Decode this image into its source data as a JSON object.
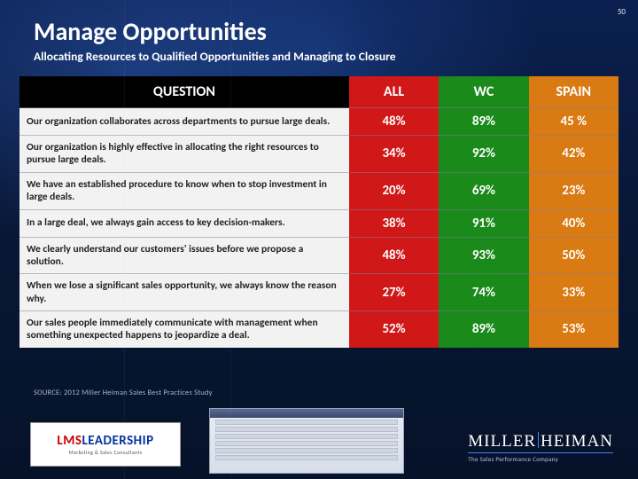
{
  "page_number": "50",
  "title": "Manage Opportunities",
  "subtitle": "Allocating Resources to Qualified Opportunities and Managing to Closure",
  "table": {
    "headers": {
      "q": "QUESTION",
      "all": "ALL",
      "wc": "WC",
      "sp": "SPAIN"
    },
    "header_colors": {
      "q": "#000000",
      "all": "#d01818",
      "wc": "#1a8a1a",
      "sp": "#d97a12"
    },
    "column_widths_pct": [
      55,
      15,
      15,
      15
    ],
    "body_font_size_pt": 11.5,
    "value_font_size_pt": 15,
    "rows": [
      {
        "q": "Our organization collaborates across departments to pursue large deals.",
        "all": "48%",
        "wc": "89%",
        "sp": "45 %"
      },
      {
        "q": "Our organization is highly effective in allocating the right resources to pursue large deals.",
        "all": "34%",
        "wc": "92%",
        "sp": "42%"
      },
      {
        "q": "We have an established procedure to know when to stop investment in large deals.",
        "all": "20%",
        "wc": "69%",
        "sp": "23%"
      },
      {
        "q": "In a large deal, we always gain access to key decision-makers.",
        "all": "38%",
        "wc": "91%",
        "sp": "40%"
      },
      {
        "q": "We clearly understand our customers' issues before we propose a solution.",
        "all": "48%",
        "wc": "93%",
        "sp": "50%"
      },
      {
        "q": "When we lose a significant sales opportunity, we always know the reason why.",
        "all": "27%",
        "wc": "74%",
        "sp": "33%"
      },
      {
        "q": "Our sales people immediately communicate with management when something unexpected happens to jeopardize a deal.",
        "all": "52%",
        "wc": "89%",
        "sp": "53%"
      }
    ]
  },
  "source": "SOURCE: 2012 Miller Heiman Sales Best Practices Study",
  "logo_left": {
    "text_red": "LMS",
    "text_blue": "LEADERSHIP",
    "tag": "Marketing & Sales Consultants"
  },
  "logo_right": {
    "line1a": "MILLER",
    "line1b": "HEIMAN",
    "line2": "The Sales Performance Company"
  },
  "colors": {
    "background_base": "#0a1a3a",
    "text_light": "#ffffff",
    "col_all": "#d01818",
    "col_wc": "#1a8a1a",
    "col_sp": "#d97a12",
    "row_q_bg": "#f2f2f2"
  },
  "typography": {
    "title_pt": 28,
    "subtitle_pt": 13.5,
    "header_pt": 16
  }
}
